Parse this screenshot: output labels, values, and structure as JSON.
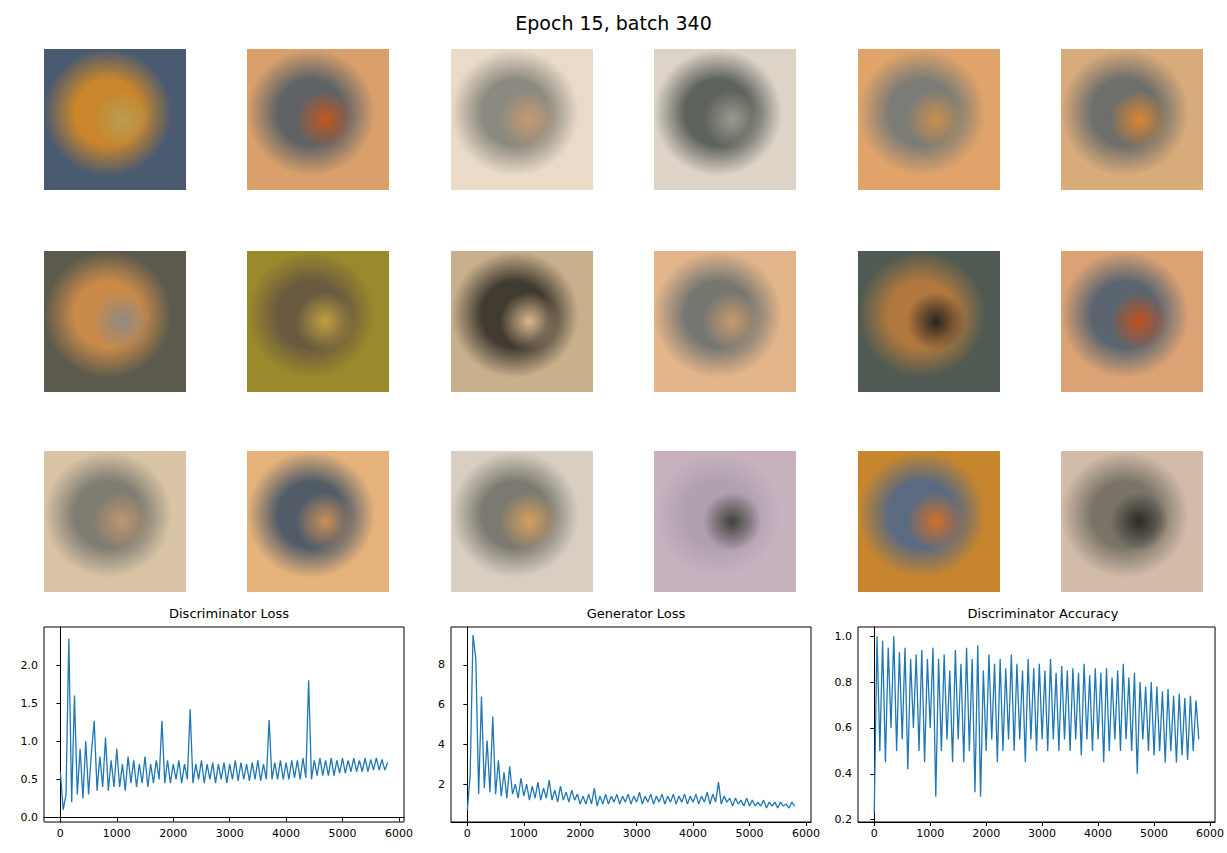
{
  "title": "Epoch 15, batch 340",
  "chart_data": [
    {
      "type": "line",
      "title": "Discriminator Loss",
      "color": "#1f77b4",
      "grid": false,
      "xlim": [
        -290,
        6090
      ],
      "xticks": [
        0,
        1000,
        2000,
        3000,
        4000,
        5000,
        6000
      ],
      "ylim": [
        -0.06,
        2.5
      ],
      "yticks": [
        {
          "value": 0,
          "label": "0.0"
        },
        0.5,
        {
          "value": 1,
          "label": "1.0"
        },
        1.5,
        {
          "value": 2,
          "label": "2.0"
        }
      ],
      "x": [
        0,
        50,
        100,
        150,
        200,
        250,
        300,
        350,
        400,
        450,
        500,
        550,
        600,
        650,
        700,
        750,
        800,
        850,
        900,
        950,
        1000,
        1050,
        1100,
        1150,
        1200,
        1250,
        1300,
        1350,
        1400,
        1450,
        1500,
        1550,
        1600,
        1650,
        1700,
        1750,
        1800,
        1850,
        1900,
        1950,
        2000,
        2050,
        2100,
        2150,
        2200,
        2250,
        2300,
        2350,
        2400,
        2450,
        2500,
        2550,
        2600,
        2650,
        2700,
        2750,
        2800,
        2850,
        2900,
        2950,
        3000,
        3050,
        3100,
        3150,
        3200,
        3250,
        3300,
        3350,
        3400,
        3450,
        3500,
        3550,
        3600,
        3650,
        3700,
        3750,
        3800,
        3850,
        3900,
        3950,
        4000,
        4050,
        4100,
        4150,
        4200,
        4250,
        4300,
        4350,
        4400,
        4450,
        4500,
        4550,
        4600,
        4650,
        4700,
        4750,
        4800,
        4850,
        4900,
        4950,
        5000,
        5050,
        5100,
        5150,
        5200,
        5250,
        5300,
        5350,
        5400,
        5450,
        5500,
        5550,
        5600,
        5650,
        5700,
        5750,
        5800
      ],
      "values": [
        0.6,
        0.1,
        0.3,
        2.35,
        0.2,
        1.6,
        0.3,
        0.9,
        0.25,
        1.0,
        0.3,
        0.85,
        1.27,
        0.35,
        0.8,
        0.4,
        1.05,
        0.35,
        0.75,
        0.4,
        0.9,
        0.4,
        0.7,
        0.35,
        0.8,
        0.45,
        0.75,
        0.4,
        0.7,
        0.45,
        0.8,
        0.4,
        0.7,
        0.45,
        0.75,
        0.5,
        1.27,
        0.45,
        0.75,
        0.45,
        0.7,
        0.5,
        0.75,
        0.45,
        0.7,
        0.5,
        1.42,
        0.45,
        0.7,
        0.5,
        0.75,
        0.45,
        0.7,
        0.5,
        0.72,
        0.45,
        0.7,
        0.5,
        0.72,
        0.45,
        0.7,
        0.5,
        0.75,
        0.48,
        0.72,
        0.5,
        0.7,
        0.48,
        0.72,
        0.5,
        0.75,
        0.48,
        0.7,
        0.5,
        1.28,
        0.5,
        0.72,
        0.5,
        0.75,
        0.5,
        0.72,
        0.5,
        0.75,
        0.52,
        0.75,
        0.5,
        0.78,
        0.52,
        1.8,
        0.5,
        0.75,
        0.55,
        0.78,
        0.55,
        0.75,
        0.55,
        0.78,
        0.55,
        0.75,
        0.58,
        0.78,
        0.58,
        0.75,
        0.6,
        0.78,
        0.6,
        0.75,
        0.6,
        0.78,
        0.6,
        0.76,
        0.62,
        0.78,
        0.62,
        0.76,
        0.62,
        0.72
      ]
    },
    {
      "type": "line",
      "title": "Generator Loss",
      "color": "#1f77b4",
      "grid": false,
      "xlim": [
        -290,
        6090
      ],
      "xticks": [
        0,
        1000,
        2000,
        3000,
        4000,
        5000,
        6000
      ],
      "ylim": [
        0.1,
        9.9
      ],
      "yticks": [
        2,
        4,
        6,
        8
      ],
      "x": [
        0,
        50,
        100,
        150,
        200,
        250,
        300,
        350,
        400,
        450,
        500,
        550,
        600,
        650,
        700,
        750,
        800,
        850,
        900,
        950,
        1000,
        1050,
        1100,
        1150,
        1200,
        1250,
        1300,
        1350,
        1400,
        1450,
        1500,
        1550,
        1600,
        1650,
        1700,
        1750,
        1800,
        1850,
        1900,
        1950,
        2000,
        2050,
        2100,
        2150,
        2200,
        2250,
        2300,
        2350,
        2400,
        2450,
        2500,
        2550,
        2600,
        2650,
        2700,
        2750,
        2800,
        2850,
        2900,
        2950,
        3000,
        3050,
        3100,
        3150,
        3200,
        3250,
        3300,
        3350,
        3400,
        3450,
        3500,
        3550,
        3600,
        3650,
        3700,
        3750,
        3800,
        3850,
        3900,
        3950,
        4000,
        4050,
        4100,
        4150,
        4200,
        4250,
        4300,
        4350,
        4400,
        4450,
        4500,
        4550,
        4600,
        4650,
        4700,
        4750,
        4800,
        4850,
        4900,
        4950,
        5000,
        5050,
        5100,
        5150,
        5200,
        5250,
        5300,
        5350,
        5400,
        5450,
        5500,
        5550,
        5600,
        5650,
        5700,
        5750,
        5800
      ],
      "values": [
        0.7,
        2.5,
        9.5,
        8.3,
        1.5,
        6.4,
        1.8,
        4.2,
        1.6,
        5.4,
        1.5,
        3.2,
        1.4,
        2.6,
        1.3,
        2.9,
        1.5,
        2.0,
        1.3,
        2.3,
        1.4,
        2.0,
        1.2,
        1.9,
        1.3,
        2.1,
        1.2,
        1.8,
        1.3,
        2.2,
        1.2,
        1.7,
        1.1,
        1.9,
        1.2,
        1.6,
        1.1,
        1.7,
        1.2,
        1.5,
        1.0,
        1.4,
        1.0,
        1.5,
        1.0,
        1.8,
        0.9,
        1.4,
        1.0,
        1.5,
        1.0,
        1.4,
        1.1,
        1.5,
        1.0,
        1.4,
        1.1,
        1.5,
        1.0,
        1.4,
        1.1,
        1.6,
        1.0,
        1.4,
        1.1,
        1.5,
        1.0,
        1.4,
        1.1,
        1.5,
        1.0,
        1.4,
        1.1,
        1.5,
        1.0,
        1.4,
        1.1,
        1.5,
        1.0,
        1.4,
        1.1,
        1.5,
        1.0,
        1.4,
        1.1,
        1.6,
        1.0,
        1.5,
        1.1,
        2.1,
        1.0,
        1.4,
        1.1,
        1.3,
        0.9,
        1.3,
        1.0,
        1.2,
        0.9,
        1.3,
        0.9,
        1.2,
        0.9,
        1.1,
        0.9,
        1.2,
        0.8,
        1.1,
        0.9,
        1.1,
        0.8,
        1.1,
        0.9,
        1.0,
        0.8,
        1.1,
        0.9
      ]
    },
    {
      "type": "line",
      "title": "Discriminator Accuracy",
      "color": "#1f77b4",
      "grid": false,
      "xlim": [
        -290,
        6090
      ],
      "xticks": [
        0,
        1000,
        2000,
        3000,
        4000,
        5000,
        6000
      ],
      "ylim": [
        0.19,
        1.04
      ],
      "yticks": [
        0.2,
        0.4,
        0.6,
        0.8,
        {
          "value": 1,
          "label": "1.0"
        }
      ],
      "x": [
        0,
        50,
        100,
        150,
        200,
        250,
        300,
        350,
        400,
        450,
        500,
        550,
        600,
        650,
        700,
        750,
        800,
        850,
        900,
        950,
        1000,
        1050,
        1100,
        1150,
        1200,
        1250,
        1300,
        1350,
        1400,
        1450,
        1500,
        1550,
        1600,
        1650,
        1700,
        1750,
        1800,
        1850,
        1900,
        1950,
        2000,
        2050,
        2100,
        2150,
        2200,
        2250,
        2300,
        2350,
        2400,
        2450,
        2500,
        2550,
        2600,
        2650,
        2700,
        2750,
        2800,
        2850,
        2900,
        2950,
        3000,
        3050,
        3100,
        3150,
        3200,
        3250,
        3300,
        3350,
        3400,
        3450,
        3500,
        3550,
        3600,
        3650,
        3700,
        3750,
        3800,
        3850,
        3900,
        3950,
        4000,
        4050,
        4100,
        4150,
        4200,
        4250,
        4300,
        4350,
        4400,
        4450,
        4500,
        4550,
        4600,
        4650,
        4700,
        4750,
        4800,
        4850,
        4900,
        4950,
        5000,
        5050,
        5100,
        5150,
        5200,
        5250,
        5300,
        5350,
        5400,
        5450,
        5500,
        5550,
        5600,
        5650,
        5700,
        5750,
        5800
      ],
      "values": [
        0.23,
        1.0,
        0.5,
        0.98,
        0.45,
        0.95,
        0.6,
        1.0,
        0.5,
        0.93,
        0.55,
        0.95,
        0.42,
        0.9,
        0.6,
        0.92,
        0.5,
        0.94,
        0.45,
        0.9,
        0.6,
        0.95,
        0.3,
        0.9,
        0.5,
        0.92,
        0.55,
        0.85,
        0.45,
        0.94,
        0.55,
        0.88,
        0.45,
        0.95,
        0.5,
        0.9,
        0.32,
        0.96,
        0.3,
        0.85,
        0.5,
        0.92,
        0.55,
        0.88,
        0.45,
        0.9,
        0.5,
        0.86,
        0.55,
        0.92,
        0.5,
        0.88,
        0.55,
        0.85,
        0.45,
        0.9,
        0.55,
        0.86,
        0.5,
        0.88,
        0.55,
        0.85,
        0.5,
        0.9,
        0.55,
        0.84,
        0.5,
        0.87,
        0.55,
        0.85,
        0.5,
        0.86,
        0.55,
        0.84,
        0.48,
        0.88,
        0.55,
        0.83,
        0.5,
        0.86,
        0.55,
        0.84,
        0.45,
        0.86,
        0.5,
        0.82,
        0.55,
        0.85,
        0.5,
        0.88,
        0.55,
        0.82,
        0.5,
        0.84,
        0.4,
        0.8,
        0.55,
        0.78,
        0.5,
        0.8,
        0.48,
        0.78,
        0.5,
        0.76,
        0.45,
        0.77,
        0.5,
        0.74,
        0.45,
        0.75,
        0.48,
        0.73,
        0.46,
        0.74,
        0.5,
        0.72,
        0.55
      ]
    }
  ]
}
